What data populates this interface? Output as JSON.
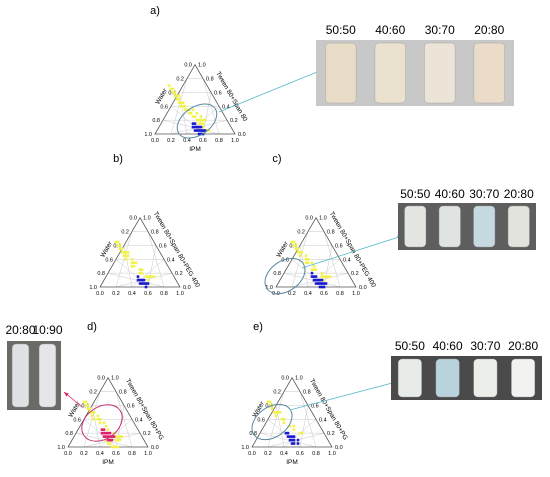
{
  "panels": [
    {
      "id": "a",
      "label": "a)",
      "left_axis": "Water",
      "right_axis": "Tween 80+Span 80",
      "bottom_axis": "IPM",
      "ellipse_color": "#5a8aa0",
      "blue_points": [
        [
          0.1,
          0.75
        ],
        [
          0.15,
          0.75
        ],
        [
          0.2,
          0.75
        ],
        [
          0.1,
          0.8
        ],
        [
          0.15,
          0.8
        ],
        [
          0.2,
          0.8
        ],
        [
          0.25,
          0.7
        ],
        [
          0.05,
          0.85
        ],
        [
          0.1,
          0.85
        ],
        [
          0.15,
          0.85
        ],
        [
          0.05,
          0.9
        ],
        [
          0.1,
          0.9
        ],
        [
          0.15,
          0.7
        ],
        [
          0.2,
          0.7
        ],
        [
          0.25,
          0.65
        ],
        [
          0.3,
          0.65
        ]
      ],
      "magenta_points": [],
      "yellow_points": [
        [
          0.05,
          0.35
        ],
        [
          0.1,
          0.35
        ],
        [
          0.05,
          0.4
        ],
        [
          0.1,
          0.4
        ],
        [
          0.15,
          0.4
        ],
        [
          0.05,
          0.45
        ],
        [
          0.1,
          0.45
        ],
        [
          0.15,
          0.45
        ],
        [
          0.2,
          0.45
        ],
        [
          0.05,
          0.5
        ],
        [
          0.1,
          0.5
        ],
        [
          0.15,
          0.5
        ],
        [
          0.2,
          0.5
        ],
        [
          0.25,
          0.5
        ],
        [
          0.05,
          0.55
        ],
        [
          0.1,
          0.55
        ],
        [
          0.15,
          0.55
        ],
        [
          0.2,
          0.55
        ],
        [
          0.25,
          0.55
        ],
        [
          0.3,
          0.55
        ],
        [
          0.35,
          0.45
        ],
        [
          0.4,
          0.4
        ],
        [
          0.45,
          0.35
        ],
        [
          0.3,
          0.5
        ],
        [
          0.35,
          0.5
        ],
        [
          0.25,
          0.6
        ],
        [
          0.3,
          0.6
        ],
        [
          0.35,
          0.6
        ],
        [
          0.4,
          0.55
        ],
        [
          0.05,
          0.25
        ],
        [
          0.1,
          0.25
        ],
        [
          0.05,
          0.3
        ],
        [
          0.1,
          0.3
        ],
        [
          0.15,
          0.3
        ],
        [
          0.3,
          0.35
        ],
        [
          0.35,
          0.35
        ],
        [
          0.4,
          0.35
        ]
      ],
      "inset_ratios": [
        "50:50",
        "40:60",
        "30:70",
        "20:80"
      ],
      "inset_tubes": [
        "#e8dcc7",
        "#ebe1cf",
        "#ece4d6",
        "#eadcc8"
      ],
      "inset_bg": "#c8c8c8"
    },
    {
      "id": "b",
      "label": "b)",
      "left_axis": "Water",
      "right_axis": "Tween 80+Span 80+PEG 400",
      "bottom_axis": "",
      "ellipse_color": "",
      "blue_points": [
        [
          0.1,
          0.75
        ],
        [
          0.15,
          0.75
        ],
        [
          0.2,
          0.75
        ],
        [
          0.1,
          0.8
        ],
        [
          0.15,
          0.8
        ],
        [
          0.05,
          0.85
        ],
        [
          0.1,
          0.85
        ],
        [
          0.15,
          0.85
        ],
        [
          0.05,
          0.9
        ],
        [
          0.25,
          0.7
        ],
        [
          0.2,
          0.7
        ]
      ],
      "magenta_points": [],
      "yellow_points": [
        [
          0.05,
          0.3
        ],
        [
          0.1,
          0.3
        ],
        [
          0.05,
          0.35
        ],
        [
          0.1,
          0.35
        ],
        [
          0.15,
          0.35
        ],
        [
          0.05,
          0.4
        ],
        [
          0.1,
          0.4
        ],
        [
          0.15,
          0.4
        ],
        [
          0.2,
          0.4
        ],
        [
          0.25,
          0.4
        ],
        [
          0.05,
          0.45
        ],
        [
          0.1,
          0.45
        ],
        [
          0.2,
          0.45
        ],
        [
          0.3,
          0.45
        ],
        [
          0.05,
          0.5
        ],
        [
          0.15,
          0.5
        ],
        [
          0.25,
          0.5
        ],
        [
          0.35,
          0.5
        ],
        [
          0.05,
          0.55
        ],
        [
          0.15,
          0.55
        ],
        [
          0.25,
          0.55
        ],
        [
          0.3,
          0.55
        ],
        [
          0.1,
          0.6
        ],
        [
          0.2,
          0.6
        ],
        [
          0.3,
          0.6
        ],
        [
          0.4,
          0.45
        ],
        [
          0.45,
          0.4
        ],
        [
          0.5,
          0.35
        ],
        [
          0.1,
          0.25
        ],
        [
          0.2,
          0.3
        ]
      ],
      "inset_ratios": [],
      "inset_tubes": [],
      "inset_bg": ""
    },
    {
      "id": "c",
      "label": "c)",
      "left_axis": "Water",
      "right_axis": "Tween 80+Span 80+PEG 400",
      "bottom_axis": "",
      "ellipse_color": "#5a8aa0",
      "blue_points": [
        [
          0.1,
          0.7
        ],
        [
          0.15,
          0.7
        ],
        [
          0.2,
          0.7
        ],
        [
          0.25,
          0.65
        ],
        [
          0.1,
          0.75
        ],
        [
          0.15,
          0.75
        ],
        [
          0.2,
          0.75
        ],
        [
          0.1,
          0.8
        ],
        [
          0.15,
          0.8
        ],
        [
          0.2,
          0.8
        ],
        [
          0.05,
          0.85
        ],
        [
          0.1,
          0.85
        ],
        [
          0.15,
          0.85
        ],
        [
          0.05,
          0.9
        ],
        [
          0.1,
          0.9
        ],
        [
          0.25,
          0.7
        ],
        [
          0.3,
          0.65
        ],
        [
          0.05,
          0.8
        ]
      ],
      "magenta_points": [],
      "yellow_points": [
        [
          0.05,
          0.3
        ],
        [
          0.1,
          0.3
        ],
        [
          0.05,
          0.35
        ],
        [
          0.1,
          0.35
        ],
        [
          0.15,
          0.35
        ],
        [
          0.05,
          0.4
        ],
        [
          0.1,
          0.4
        ],
        [
          0.2,
          0.4
        ],
        [
          0.25,
          0.4
        ],
        [
          0.05,
          0.45
        ],
        [
          0.15,
          0.45
        ],
        [
          0.25,
          0.45
        ],
        [
          0.35,
          0.45
        ],
        [
          0.05,
          0.5
        ],
        [
          0.15,
          0.5
        ],
        [
          0.25,
          0.5
        ],
        [
          0.35,
          0.5
        ],
        [
          0.1,
          0.55
        ],
        [
          0.2,
          0.55
        ],
        [
          0.3,
          0.55
        ],
        [
          0.4,
          0.45
        ],
        [
          0.45,
          0.4
        ],
        [
          0.5,
          0.35
        ],
        [
          0.1,
          0.25
        ],
        [
          0.15,
          0.6
        ],
        [
          0.3,
          0.6
        ],
        [
          0.2,
          0.35
        ]
      ],
      "inset_ratios": [
        "50:50",
        "40:60",
        "30:70",
        "20:80"
      ],
      "inset_tubes": [
        "#e4e6e2",
        "#dfe4e2",
        "#c6d8e0",
        "#e2e3dc"
      ],
      "inset_bg": "#5e5e5e"
    },
    {
      "id": "d",
      "label": "d)",
      "left_axis": "Water",
      "right_axis": "Tween 80+Span 80+PG",
      "bottom_axis": "IPM",
      "ellipse_color": "#c8307a",
      "blue_points": [],
      "magenta_points": [
        [
          0.1,
          0.65
        ],
        [
          0.15,
          0.65
        ],
        [
          0.2,
          0.65
        ],
        [
          0.25,
          0.6
        ],
        [
          0.1,
          0.7
        ],
        [
          0.15,
          0.7
        ],
        [
          0.2,
          0.7
        ],
        [
          0.05,
          0.75
        ],
        [
          0.1,
          0.75
        ],
        [
          0.15,
          0.75
        ],
        [
          0.05,
          0.8
        ],
        [
          0.1,
          0.8
        ],
        [
          0.15,
          0.6
        ],
        [
          0.2,
          0.6
        ],
        [
          0.25,
          0.55
        ],
        [
          0.3,
          0.55
        ]
      ],
      "yellow_points": [
        [
          0.05,
          0.85
        ],
        [
          0.1,
          0.85
        ],
        [
          0.15,
          0.85
        ],
        [
          0.05,
          0.9
        ],
        [
          0.1,
          0.9
        ],
        [
          0.2,
          0.8
        ],
        [
          0.25,
          0.75
        ],
        [
          0.05,
          0.3
        ],
        [
          0.1,
          0.3
        ],
        [
          0.05,
          0.35
        ],
        [
          0.1,
          0.35
        ],
        [
          0.15,
          0.35
        ],
        [
          0.05,
          0.4
        ],
        [
          0.1,
          0.4
        ],
        [
          0.2,
          0.4
        ],
        [
          0.25,
          0.4
        ],
        [
          0.05,
          0.45
        ],
        [
          0.15,
          0.45
        ],
        [
          0.25,
          0.45
        ],
        [
          0.35,
          0.45
        ],
        [
          0.05,
          0.5
        ],
        [
          0.15,
          0.5
        ],
        [
          0.25,
          0.5
        ],
        [
          0.35,
          0.5
        ],
        [
          0.05,
          0.55
        ],
        [
          0.4,
          0.45
        ],
        [
          0.45,
          0.4
        ],
        [
          0.5,
          0.35
        ],
        [
          0.1,
          0.25
        ],
        [
          0.3,
          0.6
        ],
        [
          0.35,
          0.55
        ],
        [
          0.4,
          0.5
        ],
        [
          0.2,
          0.35
        ]
      ],
      "inset_ratios": [
        "20:80",
        "10:90"
      ],
      "inset_tubes": [
        "#dfe2e4",
        "#e4e6e8"
      ],
      "inset_bg": "#6a6a66"
    },
    {
      "id": "e",
      "label": "e)",
      "left_axis": "Water",
      "right_axis": "Tween 80+Span 80+PG",
      "bottom_axis": "IPM",
      "ellipse_color": "#5a8aa0",
      "blue_points": [
        [
          0.1,
          0.7
        ],
        [
          0.15,
          0.7
        ],
        [
          0.2,
          0.65
        ],
        [
          0.05,
          0.75
        ],
        [
          0.1,
          0.75
        ],
        [
          0.15,
          0.75
        ],
        [
          0.05,
          0.8
        ],
        [
          0.1,
          0.8
        ],
        [
          0.2,
          0.75
        ],
        [
          0.05,
          0.85
        ],
        [
          0.1,
          0.85
        ],
        [
          0.25,
          0.65
        ],
        [
          0.05,
          0.9
        ]
      ],
      "magenta_points": [],
      "yellow_points": [
        [
          0.05,
          0.3
        ],
        [
          0.1,
          0.3
        ],
        [
          0.05,
          0.35
        ],
        [
          0.15,
          0.35
        ],
        [
          0.05,
          0.4
        ],
        [
          0.1,
          0.4
        ],
        [
          0.2,
          0.4
        ],
        [
          0.05,
          0.45
        ],
        [
          0.15,
          0.45
        ],
        [
          0.25,
          0.45
        ],
        [
          0.05,
          0.5
        ],
        [
          0.15,
          0.5
        ],
        [
          0.3,
          0.45
        ],
        [
          0.4,
          0.4
        ],
        [
          0.45,
          0.35
        ],
        [
          0.35,
          0.35
        ],
        [
          0.2,
          0.3
        ],
        [
          0.1,
          0.25
        ]
      ],
      "inset_ratios": [
        "50:50",
        "40:60",
        "30:70",
        "20:80"
      ],
      "inset_tubes": [
        "#e8ece8",
        "#b8d2de",
        "#eceeea",
        "#f2f2f0"
      ],
      "inset_bg": "#4a4a4a"
    }
  ],
  "tick_labels": [
    "0.0",
    "0.2",
    "0.4",
    "0.6",
    "0.8",
    "1.0"
  ],
  "colors": {
    "blue": "#1a1ad0",
    "yellow": "#f2f24a",
    "magenta": "#e0206a",
    "grid": "#c8c8c8",
    "axis": "#555555",
    "arrow": "#58b8c8"
  }
}
